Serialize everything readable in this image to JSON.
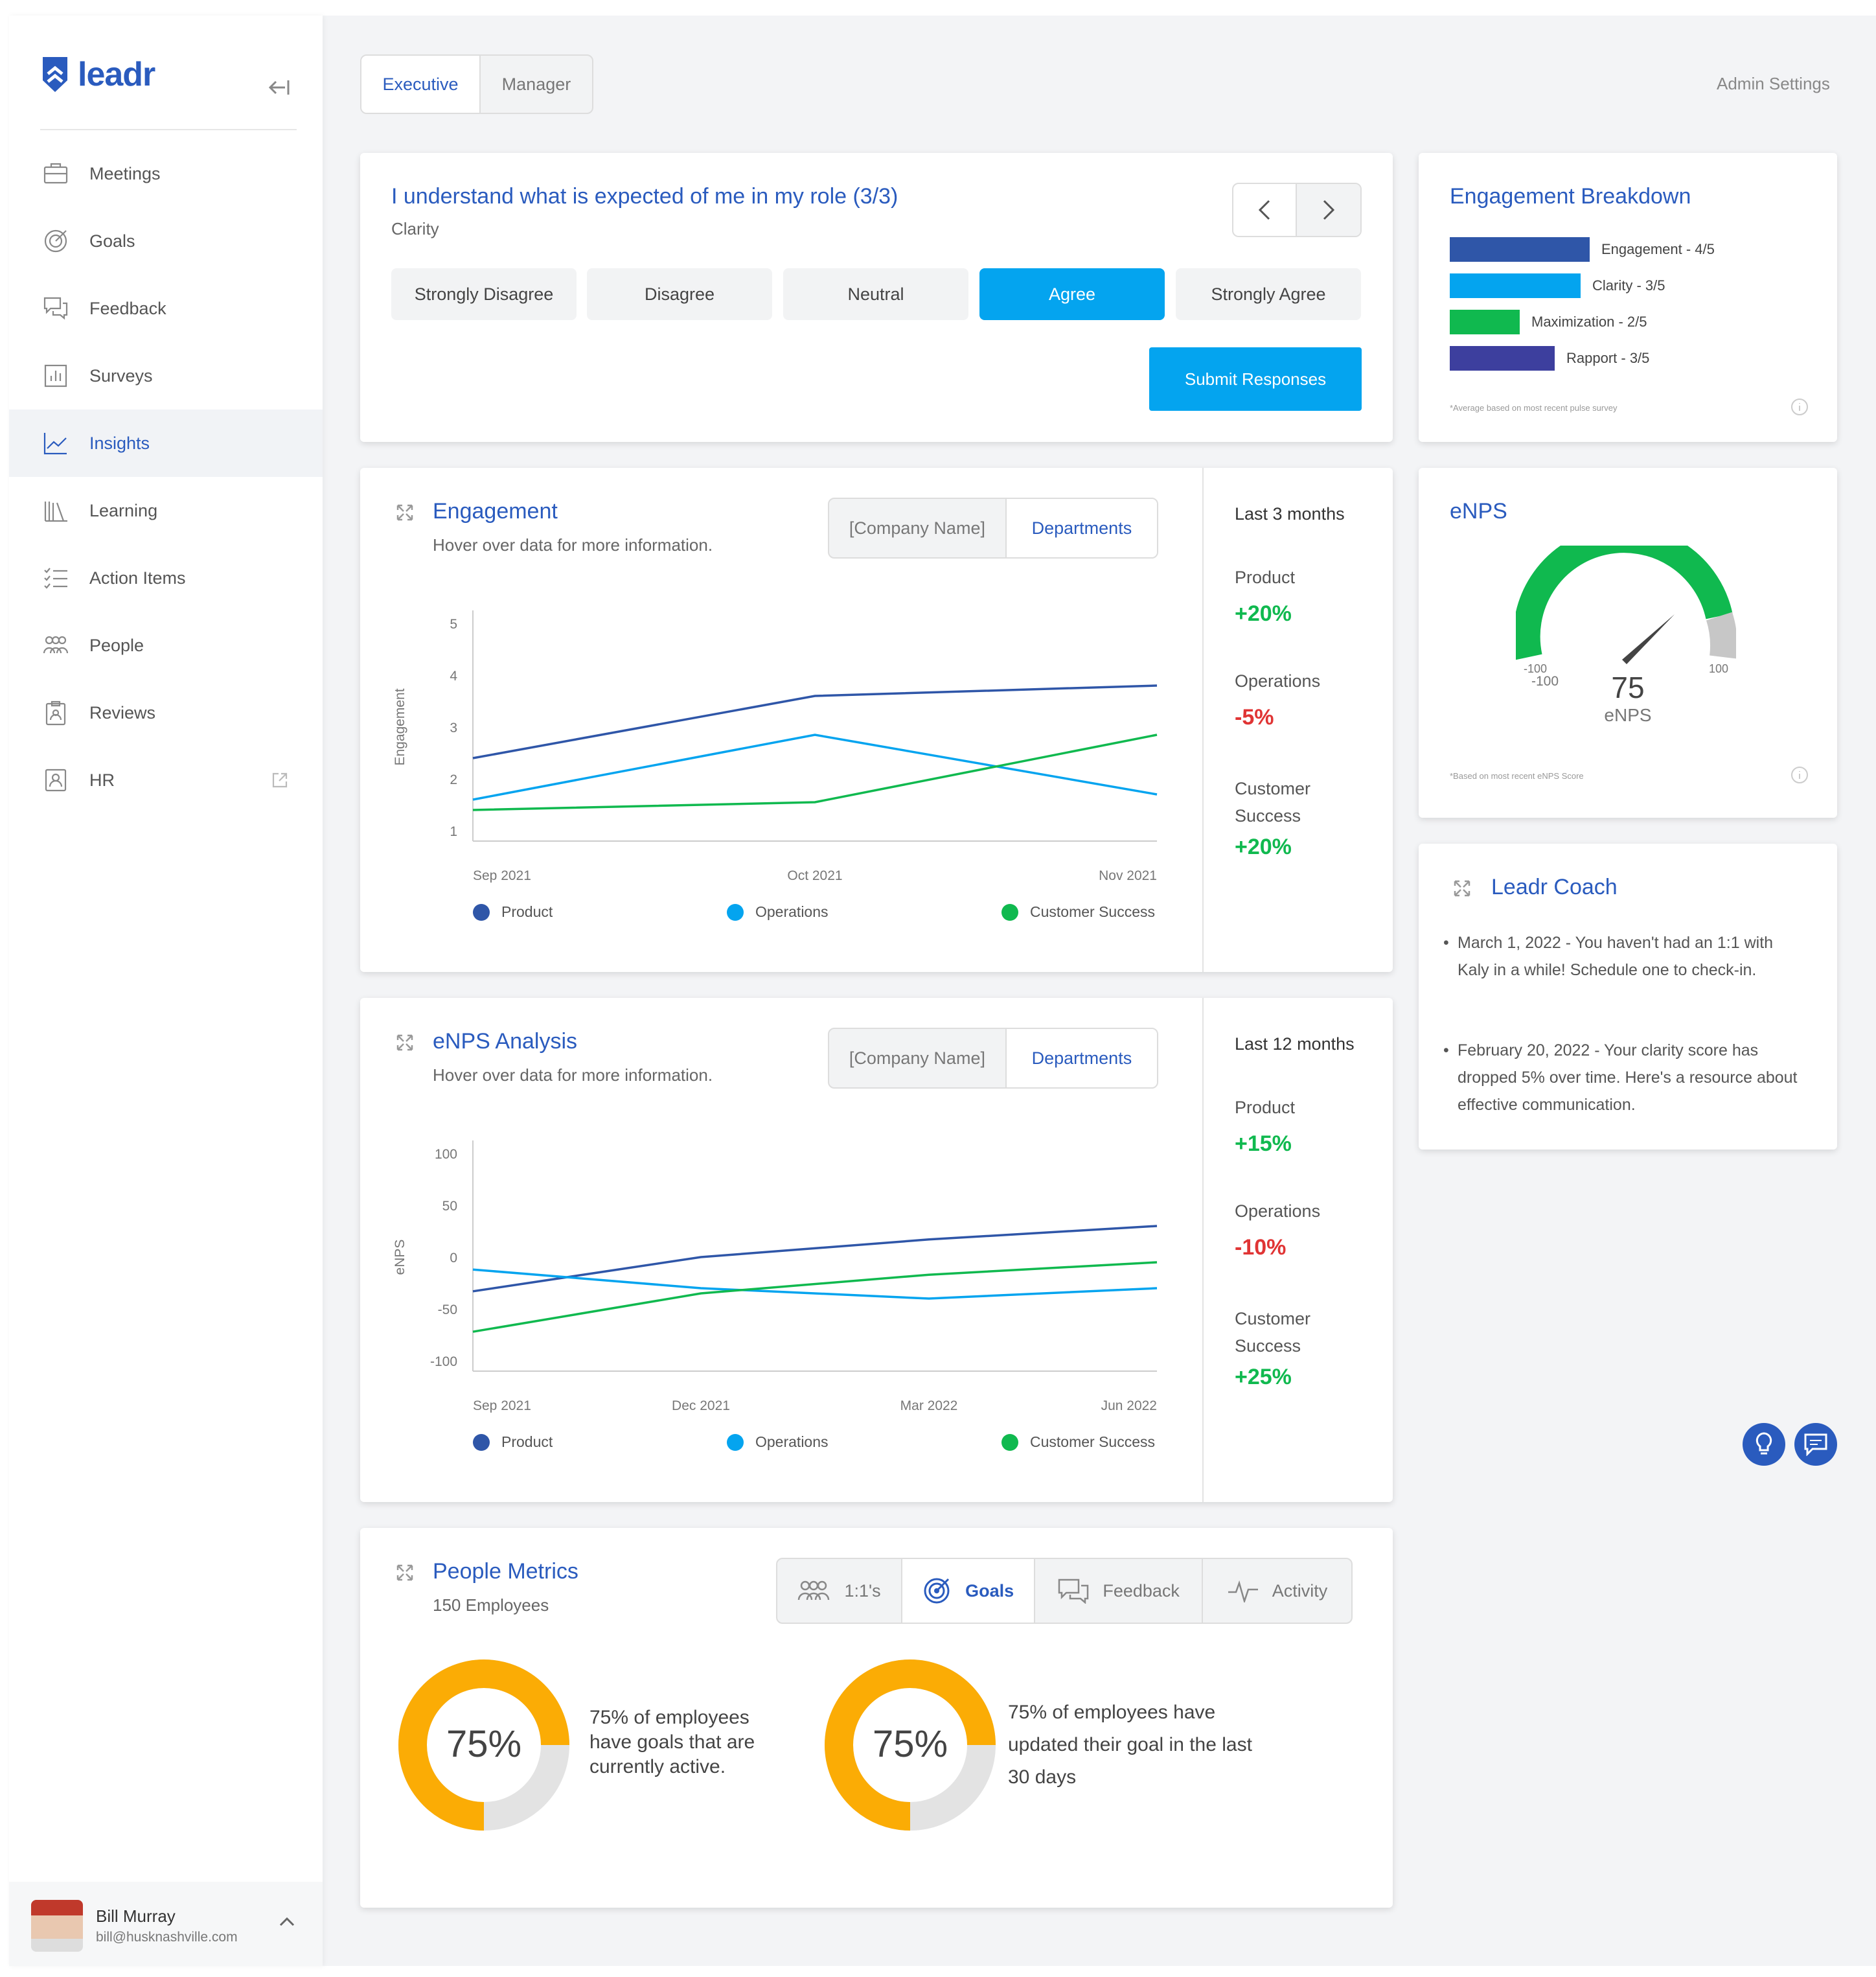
{
  "app": {
    "logo": "leadr",
    "admin_settings": "Admin Settings"
  },
  "view_tabs": [
    "Executive",
    "Manager"
  ],
  "sidebar": {
    "items": [
      {
        "label": "Meetings",
        "icon": "briefcase-icon"
      },
      {
        "label": "Goals",
        "icon": "target-icon"
      },
      {
        "label": "Feedback",
        "icon": "chat-bubbles-icon"
      },
      {
        "label": "Surveys",
        "icon": "bar-chart-icon"
      },
      {
        "label": "Insights",
        "icon": "line-chart-icon",
        "active": true
      },
      {
        "label": "Learning",
        "icon": "books-icon"
      },
      {
        "label": "Action Items",
        "icon": "checklist-icon"
      },
      {
        "label": "People",
        "icon": "people-icon"
      },
      {
        "label": "Reviews",
        "icon": "clipboard-icon"
      },
      {
        "label": "HR",
        "icon": "id-badge-icon"
      }
    ],
    "user": {
      "name": "Bill Murray",
      "email": "bill@husknashville.com"
    }
  },
  "survey": {
    "question": "I understand what is expected of me in my role (3/3)",
    "category": "Clarity",
    "options": [
      "Strongly Disagree",
      "Disagree",
      "Neutral",
      "Agree",
      "Strongly Agree"
    ],
    "selected": "Agree",
    "submit": "Submit Responses"
  },
  "breakdown": {
    "title": "Engagement Breakdown",
    "bars": [
      {
        "label": "Engagement - 4/5",
        "color": "#2f56a8",
        "value": 4
      },
      {
        "label": "Clarity - 3/5",
        "color": "#04a4ef",
        "value": 3
      },
      {
        "label": "Maximization - 2/5",
        "color": "#10b94f",
        "value": 2
      },
      {
        "label": "Rapport - 3/5",
        "color": "#3d3f9e",
        "value": 3
      }
    ],
    "footnote": "*Average based on most recent pulse survey"
  },
  "enps": {
    "title": "eNPS",
    "value": "75",
    "label": "eNPS",
    "min": "-100",
    "max": "100",
    "footnote": "*Based on most recent eNPS Score"
  },
  "coach": {
    "title": "Leadr Coach",
    "items": [
      "March 1, 2022 - You haven't had an 1:1 with Kaly in a while! Schedule one to check-in.",
      "February 20, 2022 - Your clarity score has dropped 5% over time. Here's a resource about effective communication."
    ]
  },
  "engagement": {
    "title": "Engagement",
    "subtitle": "Hover over data for more information.",
    "toggle": [
      "[Company Name]",
      "Departments"
    ],
    "period": "Last 3 months",
    "stats": [
      {
        "label": "Product",
        "value": "+20%"
      },
      {
        "label": "Operations",
        "value": "-5%"
      },
      {
        "label": "Customer Success",
        "value": "+20%"
      }
    ]
  },
  "enps_analysis": {
    "title": "eNPS Analysis",
    "subtitle": "Hover over data for more information.",
    "toggle": [
      "[Company Name]",
      "Departments"
    ],
    "period": "Last 12 months",
    "stats": [
      {
        "label": "Product",
        "value": "+15%"
      },
      {
        "label": "Operations",
        "value": "-10%"
      },
      {
        "label": "Customer Success",
        "value": "+25%"
      }
    ]
  },
  "people": {
    "title": "People Metrics",
    "subtitle": "150 Employees",
    "tabs": [
      "1:1's",
      "Goals",
      "Feedback",
      "Activity"
    ],
    "active_tab": "Goals",
    "donuts": [
      {
        "value": "75%",
        "text": "75% of employees have goals that are currently active.",
        "fraction": 0.75
      },
      {
        "value": "75%",
        "text": "75% of employees have updated their goal in the last 30 days",
        "fraction": 0.75
      }
    ]
  },
  "chart_data": [
    {
      "type": "line",
      "ylabel": "Engagement",
      "x": [
        "Sep 2021",
        "Oct 2021",
        "Nov 2021"
      ],
      "ylim": [
        1,
        5
      ],
      "yticks": [
        1,
        2,
        3,
        4,
        5
      ],
      "series": [
        {
          "name": "Product",
          "color": "#2f56a8",
          "values": [
            2.4,
            3.6,
            3.8
          ]
        },
        {
          "name": "Operations",
          "color": "#04a4ef",
          "values": [
            1.6,
            2.85,
            1.7
          ]
        },
        {
          "name": "Customer Success",
          "color": "#10b94f",
          "values": [
            1.4,
            1.55,
            2.85
          ]
        }
      ]
    },
    {
      "type": "line",
      "ylabel": "eNPS",
      "x": [
        "Sep 2021",
        "Dec 2021",
        "Mar 2022",
        "Jun 2022"
      ],
      "ylim": [
        -100,
        100
      ],
      "yticks": [
        -100,
        -50,
        0,
        50,
        100
      ],
      "series": [
        {
          "name": "Product",
          "color": "#2f56a8",
          "values": [
            -33,
            0,
            17,
            30
          ]
        },
        {
          "name": "Operations",
          "color": "#04a4ef",
          "values": [
            -12,
            -30,
            -40,
            -30
          ]
        },
        {
          "name": "Customer Success",
          "color": "#10b94f",
          "values": [
            -72,
            -35,
            -17,
            -5
          ]
        }
      ]
    }
  ]
}
